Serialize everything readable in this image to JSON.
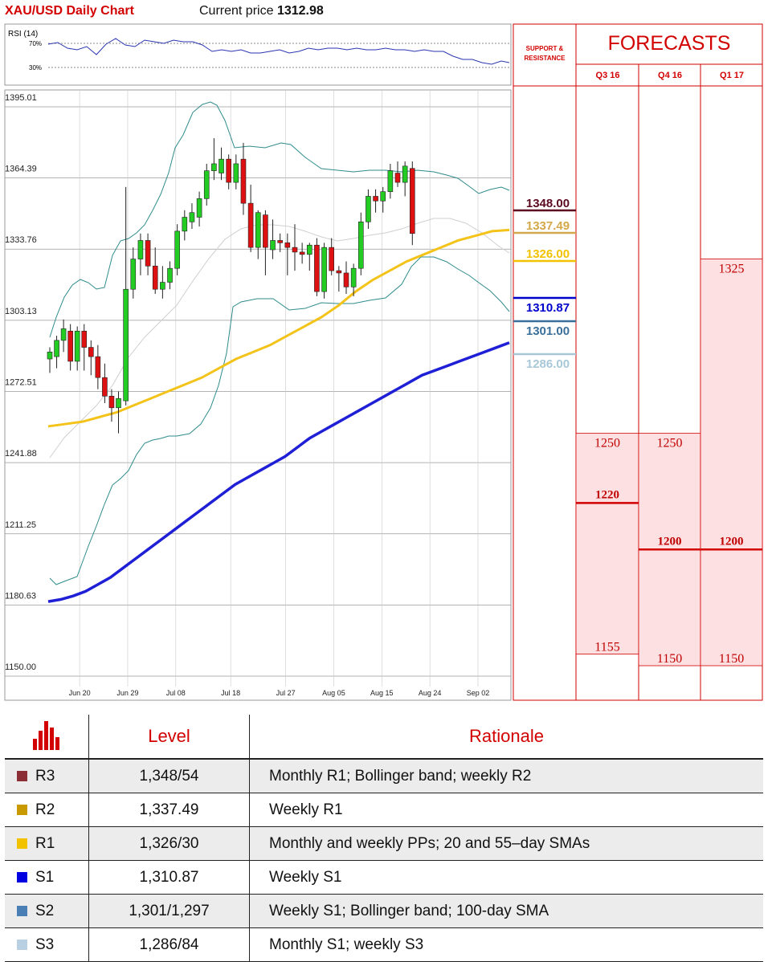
{
  "header": {
    "title": "XAU/USD Daily Chart",
    "price_label": "Current price",
    "price_value": "1312.98"
  },
  "chart_data": {
    "type": "candlestick",
    "title": "XAU/USD Daily Chart",
    "y_ticks": [
      "1395.01",
      "1364.39",
      "1333.76",
      "1303.13",
      "1272.51",
      "1241.88",
      "1211.25",
      "1180.63",
      "1150.00"
    ],
    "ylim": [
      1150.0,
      1395.01
    ],
    "x_ticks": [
      "Jun 20",
      "Jun 29",
      "Jul 08",
      "Jul 18",
      "Jul 27",
      "Aug 05",
      "Aug 15",
      "Aug 24",
      "Sep 02"
    ],
    "x_tick_index": [
      2,
      9,
      16,
      24,
      32,
      39,
      46,
      53,
      60
    ],
    "grid": true,
    "candles": [
      {
        "o": 1282,
        "h": 1287,
        "l": 1276,
        "c": 1285
      },
      {
        "o": 1283,
        "h": 1292,
        "l": 1278,
        "c": 1290
      },
      {
        "o": 1290,
        "h": 1299,
        "l": 1285,
        "c": 1295
      },
      {
        "o": 1294,
        "h": 1297,
        "l": 1277,
        "c": 1281
      },
      {
        "o": 1281,
        "h": 1296,
        "l": 1277,
        "c": 1294
      },
      {
        "o": 1294,
        "h": 1297,
        "l": 1277,
        "c": 1287
      },
      {
        "o": 1287,
        "h": 1290,
        "l": 1275,
        "c": 1283
      },
      {
        "o": 1283,
        "h": 1288,
        "l": 1269,
        "c": 1274
      },
      {
        "o": 1274,
        "h": 1280,
        "l": 1263,
        "c": 1266
      },
      {
        "o": 1266,
        "h": 1269,
        "l": 1255,
        "c": 1261
      },
      {
        "o": 1261,
        "h": 1268,
        "l": 1250,
        "c": 1265
      },
      {
        "o": 1264,
        "h": 1356,
        "l": 1262,
        "c": 1312
      },
      {
        "o": 1312,
        "h": 1330,
        "l": 1308,
        "c": 1325
      },
      {
        "o": 1325,
        "h": 1336,
        "l": 1318,
        "c": 1333
      },
      {
        "o": 1333,
        "h": 1336,
        "l": 1318,
        "c": 1322
      },
      {
        "o": 1322,
        "h": 1330,
        "l": 1310,
        "c": 1312
      },
      {
        "o": 1312,
        "h": 1322,
        "l": 1308,
        "c": 1315
      },
      {
        "o": 1315,
        "h": 1324,
        "l": 1312,
        "c": 1321
      },
      {
        "o": 1321,
        "h": 1340,
        "l": 1318,
        "c": 1337
      },
      {
        "o": 1337,
        "h": 1346,
        "l": 1333,
        "c": 1343
      },
      {
        "o": 1341,
        "h": 1349,
        "l": 1338,
        "c": 1345
      },
      {
        "o": 1343,
        "h": 1354,
        "l": 1339,
        "c": 1351
      },
      {
        "o": 1351,
        "h": 1366,
        "l": 1348,
        "c": 1363
      },
      {
        "o": 1363,
        "h": 1377,
        "l": 1359,
        "c": 1366
      },
      {
        "o": 1362,
        "h": 1373,
        "l": 1359,
        "c": 1368
      },
      {
        "o": 1368,
        "h": 1370,
        "l": 1355,
        "c": 1358
      },
      {
        "o": 1358,
        "h": 1370,
        "l": 1355,
        "c": 1366
      },
      {
        "o": 1368,
        "h": 1375,
        "l": 1344,
        "c": 1349
      },
      {
        "o": 1349,
        "h": 1357,
        "l": 1328,
        "c": 1330
      },
      {
        "o": 1330,
        "h": 1346,
        "l": 1325,
        "c": 1345
      },
      {
        "o": 1344,
        "h": 1346,
        "l": 1318,
        "c": 1330
      },
      {
        "o": 1329,
        "h": 1342,
        "l": 1325,
        "c": 1333
      },
      {
        "o": 1333,
        "h": 1336,
        "l": 1328,
        "c": 1332
      },
      {
        "o": 1332,
        "h": 1336,
        "l": 1318,
        "c": 1330
      },
      {
        "o": 1330,
        "h": 1340,
        "l": 1320,
        "c": 1328
      },
      {
        "o": 1328,
        "h": 1332,
        "l": 1323,
        "c": 1327
      },
      {
        "o": 1327,
        "h": 1332,
        "l": 1320,
        "c": 1331
      },
      {
        "o": 1331,
        "h": 1334,
        "l": 1309,
        "c": 1311
      },
      {
        "o": 1311,
        "h": 1332,
        "l": 1308,
        "c": 1330
      },
      {
        "o": 1330,
        "h": 1334,
        "l": 1318,
        "c": 1320
      },
      {
        "o": 1320,
        "h": 1322,
        "l": 1311,
        "c": 1319
      },
      {
        "o": 1319,
        "h": 1324,
        "l": 1310,
        "c": 1313
      },
      {
        "o": 1313,
        "h": 1323,
        "l": 1309,
        "c": 1321
      },
      {
        "o": 1321,
        "h": 1345,
        "l": 1318,
        "c": 1341
      },
      {
        "o": 1341,
        "h": 1355,
        "l": 1338,
        "c": 1352
      },
      {
        "o": 1352,
        "h": 1355,
        "l": 1345,
        "c": 1350
      },
      {
        "o": 1350,
        "h": 1356,
        "l": 1345,
        "c": 1354
      },
      {
        "o": 1354,
        "h": 1366,
        "l": 1351,
        "c": 1363
      },
      {
        "o": 1362,
        "h": 1367,
        "l": 1356,
        "c": 1358
      },
      {
        "o": 1358,
        "h": 1367,
        "l": 1352,
        "c": 1365
      },
      {
        "o": 1364,
        "h": 1367,
        "l": 1331,
        "c": 1336
      }
    ],
    "candles_note": "daily OHLC approximated from the plot",
    "overlays": {
      "sma_slow_blue": [
        1177.6,
        1178.5,
        1180,
        1182,
        1185,
        1188,
        1192,
        1196,
        1200,
        1204,
        1208,
        1212,
        1216,
        1220,
        1224,
        1228,
        1231,
        1234,
        1237,
        1240,
        1244,
        1248,
        1251,
        1254,
        1257,
        1260,
        1263,
        1266,
        1269,
        1272,
        1275,
        1277,
        1279,
        1281,
        1283,
        1285,
        1287,
        1289
      ],
      "sma_fast_yellow": [
        1253,
        1254,
        1255,
        1257,
        1259,
        1262,
        1265,
        1268,
        1271,
        1274,
        1278,
        1282,
        1285,
        1288,
        1292,
        1296,
        1300,
        1305,
        1311,
        1316,
        1320,
        1324,
        1327,
        1330,
        1333,
        1335,
        1337,
        1337.5
      ]
    },
    "rsi": {
      "label": "RSI (14)",
      "levels": [
        "70%",
        "30%"
      ]
    }
  },
  "support_resistance": {
    "header": "SUPPORT & RESISTANCE",
    "levels": [
      {
        "label": "1348.00",
        "value": 1348.0,
        "color": "#5c0a1f"
      },
      {
        "label": "1337.49",
        "value": 1337.49,
        "color": "#d3a84a"
      },
      {
        "label": "1326.00",
        "value": 1326.0,
        "color": "#f2c200"
      },
      {
        "label": "1310.87",
        "value": 1310.87,
        "color": "#0000cc"
      },
      {
        "label": "1301.00",
        "value": 1301.0,
        "color": "#3a6f9a"
      },
      {
        "label": "1286.00",
        "value": 1286.0,
        "color": "#a8c8d8"
      }
    ]
  },
  "forecasts": {
    "title": "FORECASTS",
    "quarters": [
      {
        "label": "Q3 16",
        "high": "1250",
        "mid": "1220",
        "low": "1155",
        "high_v": 1250,
        "mid_v": 1220,
        "low_v": 1155
      },
      {
        "label": "Q4 16",
        "high": "1250",
        "mid": "1200",
        "low": "1150",
        "high_v": 1250,
        "mid_v": 1200,
        "low_v": 1150
      },
      {
        "label": "Q1 17",
        "high": "1325",
        "mid": "1200",
        "low": "1150",
        "high_v": 1325,
        "mid_v": 1200,
        "low_v": 1150
      }
    ]
  },
  "level_table": {
    "col_level": "Level",
    "col_rationale": "Rationale",
    "rows": [
      {
        "name": "R3",
        "color": "#8b2e35",
        "level": "1,348/54",
        "rationale": "Monthly R1; Bollinger band; weekly R2"
      },
      {
        "name": "R2",
        "color": "#c99a00",
        "level": "1,337.49",
        "rationale": "Weekly R1"
      },
      {
        "name": "R1",
        "color": "#f2c200",
        "level": "1,326/30",
        "rationale": "Monthly and weekly PPs; 20 and 55–day SMAs"
      },
      {
        "name": "S1",
        "color": "#0000e0",
        "level": "1,310.87",
        "rationale": "Weekly S1"
      },
      {
        "name": "S2",
        "color": "#4a7fb5",
        "level": "1,301/1,297",
        "rationale": "Weekly S1; Bollinger band; 100-day SMA"
      },
      {
        "name": "S3",
        "color": "#b9cfe2",
        "level": "1,286/84",
        "rationale": "Monthly S1; weekly S3"
      }
    ]
  }
}
